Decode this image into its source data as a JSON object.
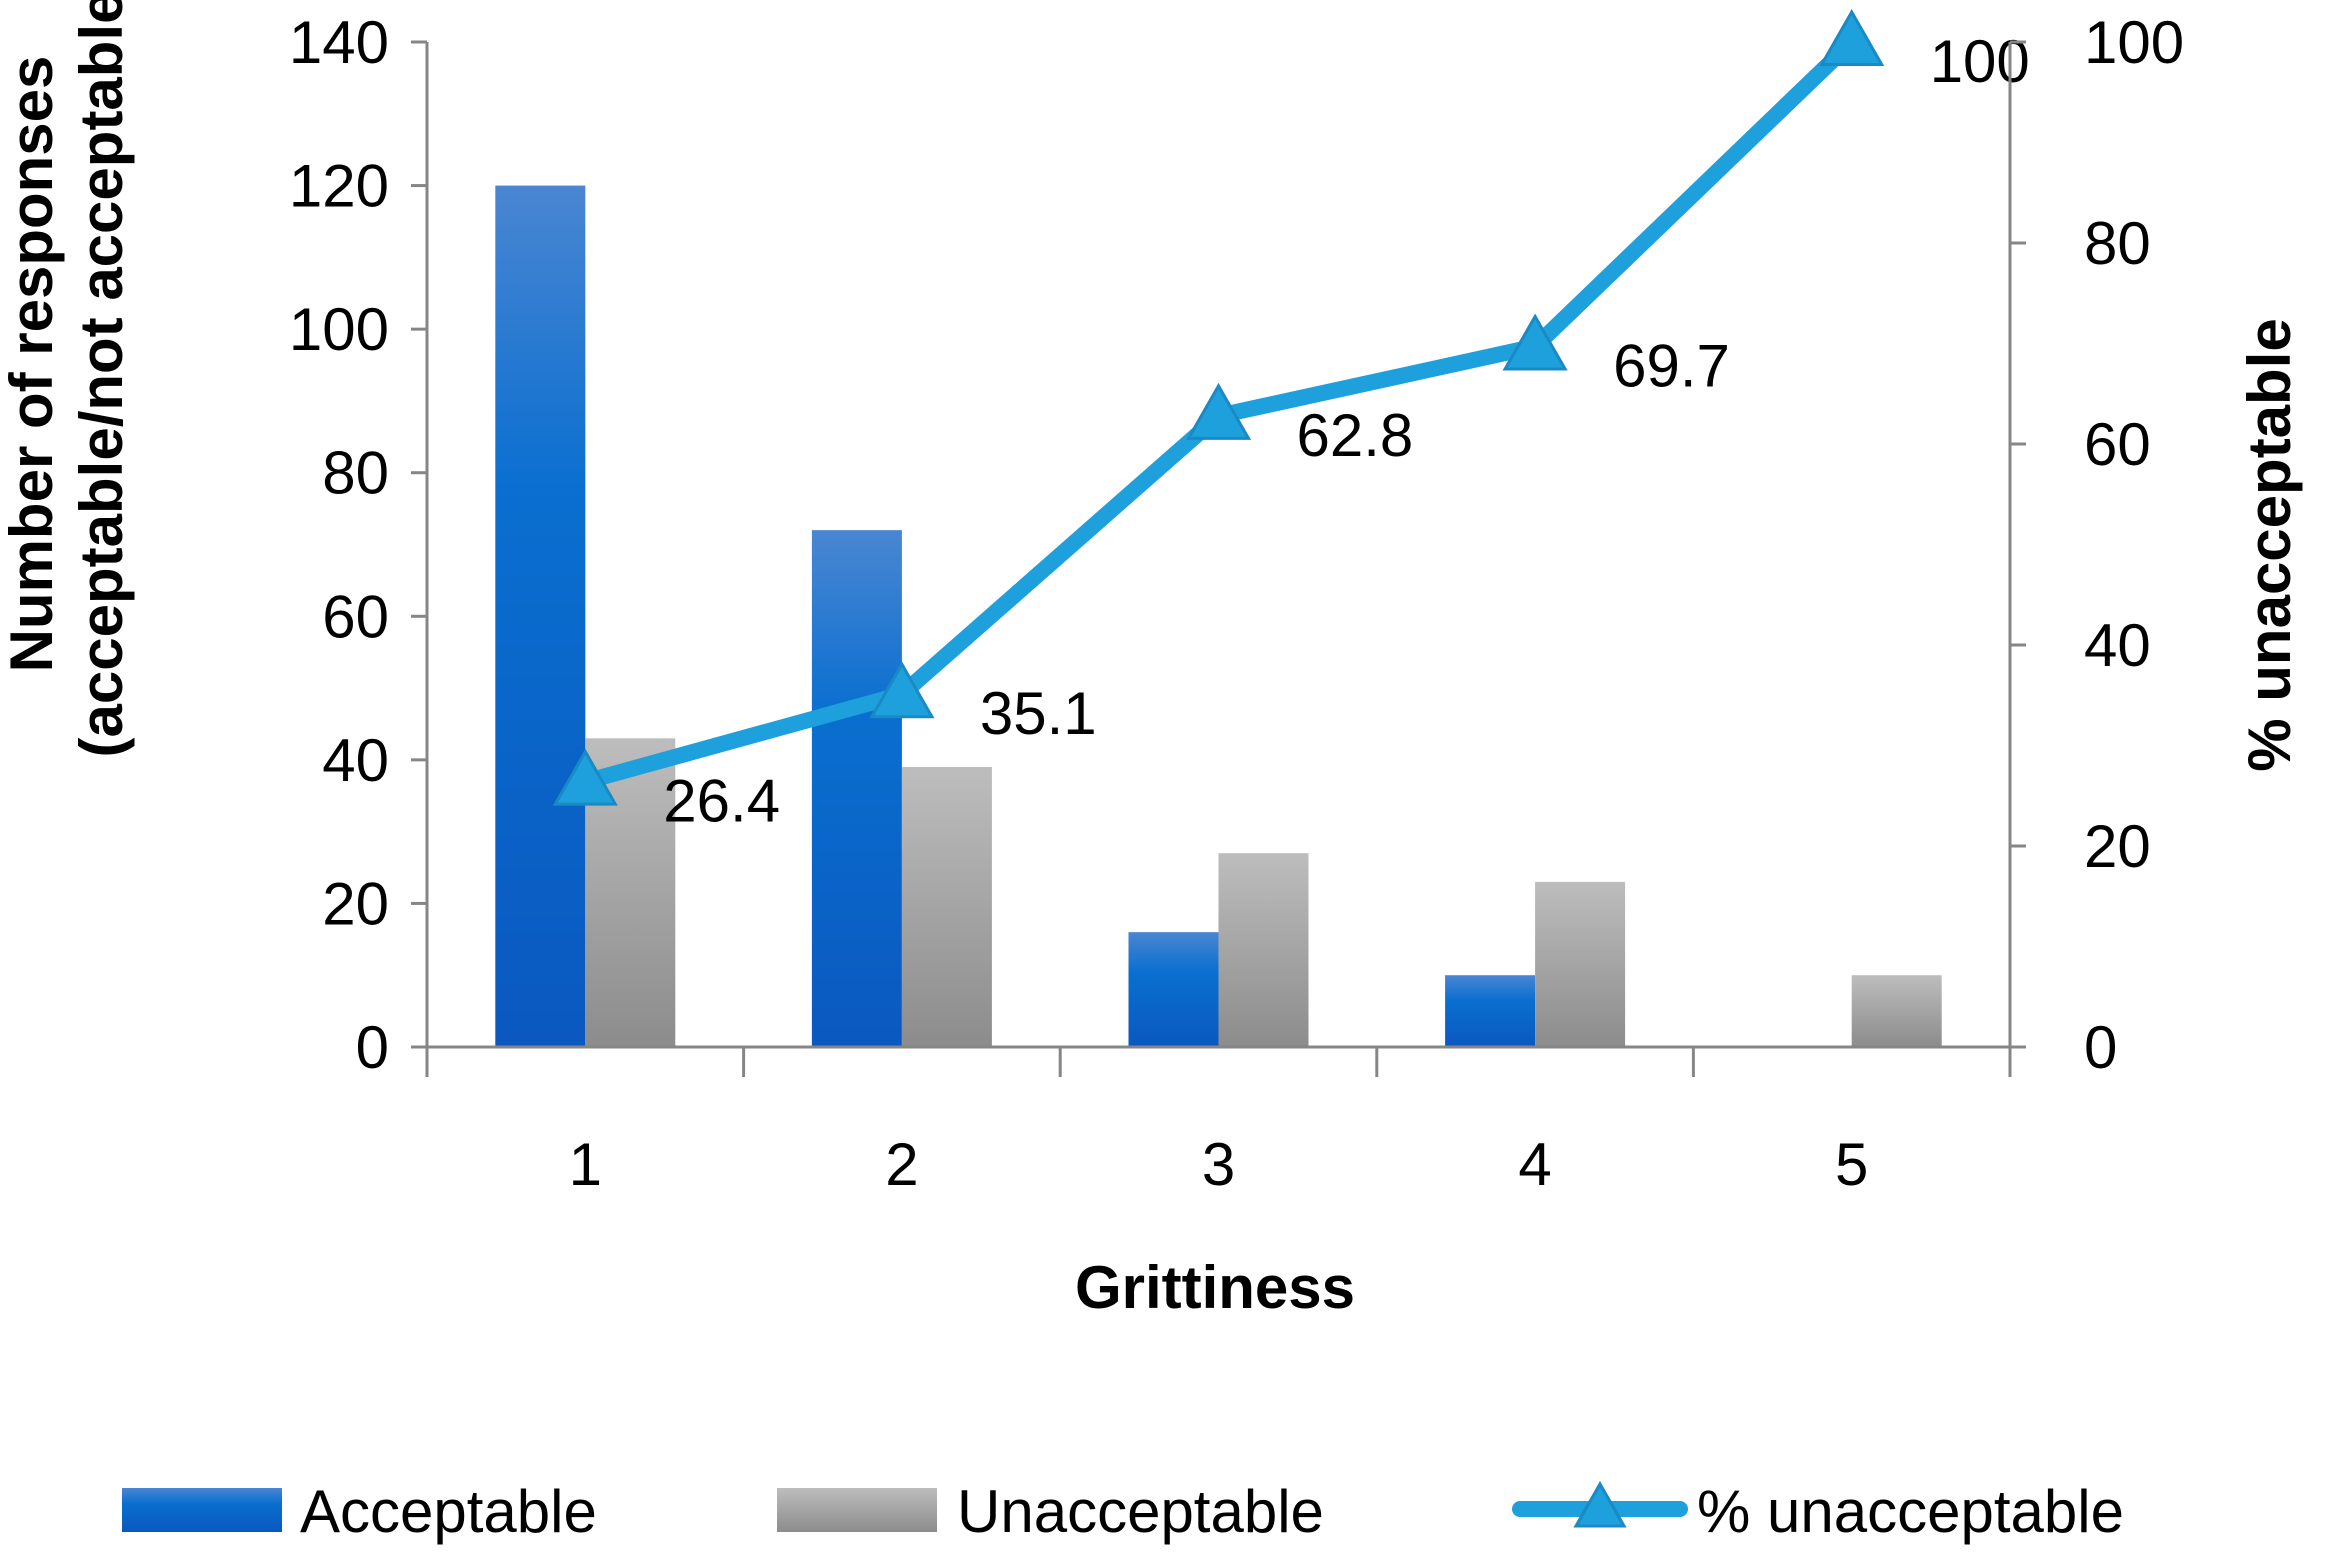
{
  "chart_data": {
    "type": "bar+line",
    "title": "",
    "categories": [
      "1",
      "2",
      "3",
      "4",
      "5"
    ],
    "xlabel": "Grittiness",
    "ylabel_left": [
      "Number of responses",
      "(acceptable/not acceptable)"
    ],
    "ylabel_right": "% unacceptable",
    "ylim_left": [
      0,
      140
    ],
    "yticks_left": [
      0,
      20,
      40,
      60,
      80,
      100,
      120,
      140
    ],
    "ylim_right": [
      0,
      100
    ],
    "yticks_right": [
      0,
      20,
      40,
      60,
      80,
      100
    ],
    "series": [
      {
        "name": "Acceptable",
        "kind": "bar",
        "axis": "left",
        "values": [
          120,
          72,
          16,
          10,
          0
        ]
      },
      {
        "name": "Unacceptable",
        "kind": "bar",
        "axis": "left",
        "values": [
          43,
          39,
          27,
          23,
          10
        ]
      },
      {
        "name": "% unacceptable",
        "kind": "line",
        "axis": "right",
        "marker": "triangle",
        "values": [
          26.4,
          35.1,
          62.8,
          69.7,
          100
        ],
        "labels": [
          "26.4",
          "35.1",
          "62.8",
          "69.7",
          "100"
        ]
      }
    ],
    "legend_position": "bottom",
    "colors": {
      "acceptable": "#0a62c8",
      "unacceptable": "#a6a6a6",
      "line": "#1ea0dc"
    }
  }
}
